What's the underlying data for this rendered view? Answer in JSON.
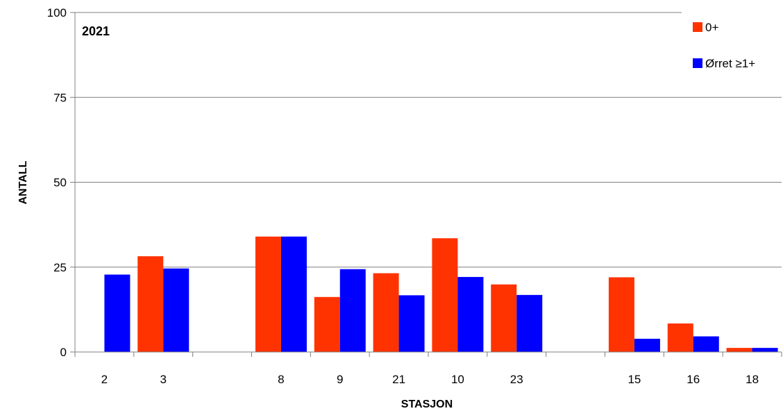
{
  "chart_data": {
    "type": "bar",
    "annotation": "2021",
    "xlabel": "STASJON",
    "ylabel": "ANTALL",
    "ylim": [
      0,
      100
    ],
    "yticks": [
      0,
      25,
      50,
      75,
      100
    ],
    "grid": true,
    "legend_position": "top-right",
    "categories": [
      "2",
      "3",
      "",
      "8",
      "9",
      "21",
      "10",
      "23",
      "",
      "15",
      "16",
      "18"
    ],
    "series": [
      {
        "name": "0+",
        "color": "#ff3300",
        "values": [
          0,
          28.2,
          null,
          34,
          16.2,
          23.2,
          33.5,
          19.9,
          null,
          22,
          8.4,
          1.2
        ]
      },
      {
        "name": "Ørret ≥1+",
        "color": "#0000ff",
        "values": [
          22.8,
          24.6,
          null,
          34,
          24.4,
          16.7,
          22.1,
          16.8,
          null,
          3.9,
          4.6,
          1.2
        ]
      }
    ]
  }
}
